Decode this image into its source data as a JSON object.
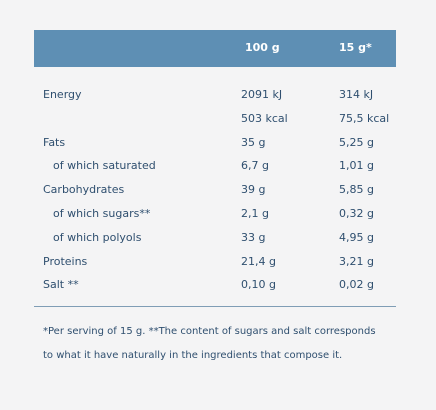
{
  "table": {
    "columns": [
      "100 g",
      "15 g*"
    ],
    "rows": [
      {
        "label": "Energy",
        "sub": false,
        "v100": "2091 kJ",
        "v15": "314 kJ"
      },
      {
        "label": "",
        "sub": false,
        "v100": "503 kcal",
        "v15": "75,5 kcal"
      },
      {
        "label": "Fats",
        "sub": false,
        "v100": "35 g",
        "v15": "5,25 g"
      },
      {
        "label": "of which saturated",
        "sub": true,
        "v100": "6,7 g",
        "v15": "1,01 g"
      },
      {
        "label": "Carbohydrates",
        "sub": false,
        "v100": "39 g",
        "v15": "5,85 g"
      },
      {
        "label": "of which sugars**",
        "sub": true,
        "v100": "2,1 g",
        "v15": "0,32 g"
      },
      {
        "label": "of which polyols",
        "sub": true,
        "v100": "33 g",
        "v15": "4,95 g"
      },
      {
        "label": "Proteins",
        "sub": false,
        "v100": "21,4 g",
        "v15": "3,21 g"
      },
      {
        "label": "Salt **",
        "sub": false,
        "v100": "0,10 g",
        "v15": "0,02 g"
      }
    ]
  },
  "footnote": "*Per serving of 15 g. **The content of sugars and salt corresponds to what it have naturally in the ingredients that compose it.",
  "colors": {
    "header_bg": "#5e8fb4",
    "text": "#2f4f6f",
    "divider": "#7f9db5"
  }
}
